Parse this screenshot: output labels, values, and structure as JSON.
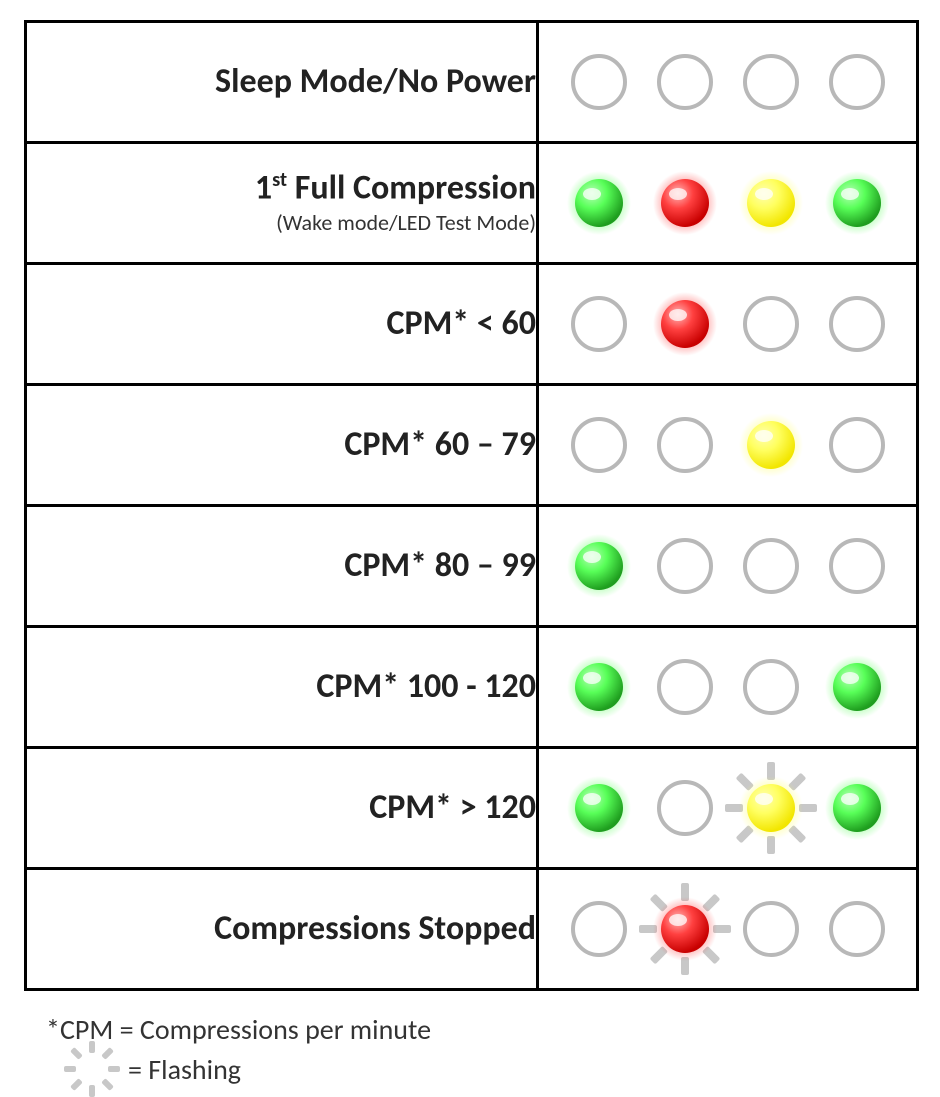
{
  "colors": {
    "off_stroke": "#b8b8b8",
    "off_fill": "#ffffff",
    "green_base": "#1f9e1f",
    "green_light": "#b6ffb6",
    "green_glow": "#58ff58",
    "red_base": "#c80000",
    "red_light": "#ffb8b8",
    "red_glow": "#ff4040",
    "yellow_base": "#f2e600",
    "yellow_light": "#ffffb0",
    "yellow_glow": "#ffff60",
    "ray_color": "#c8c8c8",
    "border_color": "#000000",
    "text_color": "#222222",
    "background": "#ffffff"
  },
  "led_geometry": {
    "slot_size": 64,
    "off_radius": 26,
    "off_stroke_width": 4,
    "on_radius": 24,
    "glow_radius": 32,
    "ray_count": 8,
    "ray_length": 18,
    "ray_width": 8
  },
  "rows": [
    {
      "label_html": "Sleep Mode/No Power",
      "sub": null,
      "leds": [
        {
          "state": "off"
        },
        {
          "state": "off"
        },
        {
          "state": "off"
        },
        {
          "state": "off"
        }
      ]
    },
    {
      "label_html": "1<sup>st</sup> Full Compression",
      "sub": "(Wake mode/LED Test Mode)",
      "leds": [
        {
          "state": "on",
          "color": "green"
        },
        {
          "state": "on",
          "color": "red"
        },
        {
          "state": "on",
          "color": "yellow"
        },
        {
          "state": "on",
          "color": "green"
        }
      ]
    },
    {
      "label_html": "CPM* < 60",
      "sub": null,
      "leds": [
        {
          "state": "off"
        },
        {
          "state": "on",
          "color": "red"
        },
        {
          "state": "off"
        },
        {
          "state": "off"
        }
      ]
    },
    {
      "label_html": "CPM* 60 – 79",
      "sub": null,
      "leds": [
        {
          "state": "off"
        },
        {
          "state": "off"
        },
        {
          "state": "on",
          "color": "yellow"
        },
        {
          "state": "off"
        }
      ]
    },
    {
      "label_html": "CPM* 80 – 99",
      "sub": null,
      "leds": [
        {
          "state": "on",
          "color": "green"
        },
        {
          "state": "off"
        },
        {
          "state": "off"
        },
        {
          "state": "off"
        }
      ]
    },
    {
      "label_html": "CPM* 100 - 120",
      "sub": null,
      "leds": [
        {
          "state": "on",
          "color": "green"
        },
        {
          "state": "off"
        },
        {
          "state": "off"
        },
        {
          "state": "on",
          "color": "green"
        }
      ]
    },
    {
      "label_html": "CPM* > 120",
      "sub": null,
      "leds": [
        {
          "state": "on",
          "color": "green"
        },
        {
          "state": "off"
        },
        {
          "state": "on",
          "color": "yellow",
          "flashing": true
        },
        {
          "state": "on",
          "color": "green"
        }
      ]
    },
    {
      "label_html": "Compressions Stopped",
      "sub": null,
      "leds": [
        {
          "state": "off"
        },
        {
          "state": "on",
          "color": "red",
          "flashing": true
        },
        {
          "state": "off"
        },
        {
          "state": "off"
        }
      ]
    }
  ],
  "footnotes": {
    "cpm": "*CPM = Compressions per minute",
    "flashing": "= Flashing"
  }
}
